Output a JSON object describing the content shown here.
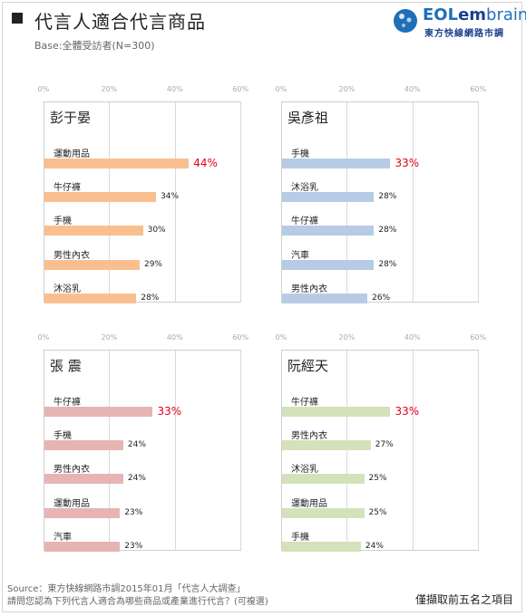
{
  "title": "代言人適合代言商品",
  "base": "Base:全體受訪者(N=300)",
  "logo": {
    "eol": "EOL",
    "em": "em",
    "brain": "brain",
    "sub": "東方快線網路市調"
  },
  "colors": {
    "orange": "#f9bf8f",
    "blue": "#b7cbe5",
    "pink": "#e6b5b3",
    "green": "#d3e2bb",
    "highlight": "#e2001a"
  },
  "chart_data": [
    {
      "type": "bar",
      "orientation": "horizontal",
      "person": "彭于晏",
      "color": "#f9bf8f",
      "ticks": [
        "0%",
        "20%",
        "40%",
        "60%"
      ],
      "xlim": [
        0,
        60
      ],
      "categories": [
        "運動用品",
        "牛仔褲",
        "手機",
        "男性內衣",
        "沐浴乳"
      ],
      "values": [
        44,
        34,
        30,
        29,
        28
      ],
      "labels": [
        "44%",
        "34%",
        "30%",
        "29%",
        "28%"
      ]
    },
    {
      "type": "bar",
      "orientation": "horizontal",
      "person": "吳彥祖",
      "color": "#b7cbe5",
      "ticks": [
        "0%",
        "20%",
        "40%",
        "60%"
      ],
      "xlim": [
        0,
        60
      ],
      "categories": [
        "手機",
        "沐浴乳",
        "牛仔褲",
        "汽車",
        "男性內衣"
      ],
      "values": [
        33,
        28,
        28,
        28,
        26
      ],
      "labels": [
        "33%",
        "28%",
        "28%",
        "28%",
        "26%"
      ]
    },
    {
      "type": "bar",
      "orientation": "horizontal",
      "person": "張 震",
      "color": "#e6b5b3",
      "ticks": [
        "0%",
        "20%",
        "40%",
        "60%"
      ],
      "xlim": [
        0,
        60
      ],
      "categories": [
        "牛仔褲",
        "手機",
        "男性內衣",
        "運動用品",
        "汽車"
      ],
      "values": [
        33,
        24,
        24,
        23,
        23
      ],
      "labels": [
        "33%",
        "24%",
        "24%",
        "23%",
        "23%"
      ]
    },
    {
      "type": "bar",
      "orientation": "horizontal",
      "person": "阮經天",
      "color": "#d3e2bb",
      "ticks": [
        "0%",
        "20%",
        "40%",
        "60%"
      ],
      "xlim": [
        0,
        60
      ],
      "categories": [
        "牛仔褲",
        "男性內衣",
        "沐浴乳",
        "運動用品",
        "手機"
      ],
      "values": [
        33,
        27,
        25,
        25,
        24
      ],
      "labels": [
        "33%",
        "27%",
        "25%",
        "25%",
        "24%"
      ]
    }
  ],
  "footer": {
    "source": "Source：東方快線網路市調2015年01月「代言人大調查」",
    "question": "請問您認為下列代言人適合為哪些商品或產業進行代言？(可複選)",
    "note": "僅擷取前五名之項目"
  }
}
